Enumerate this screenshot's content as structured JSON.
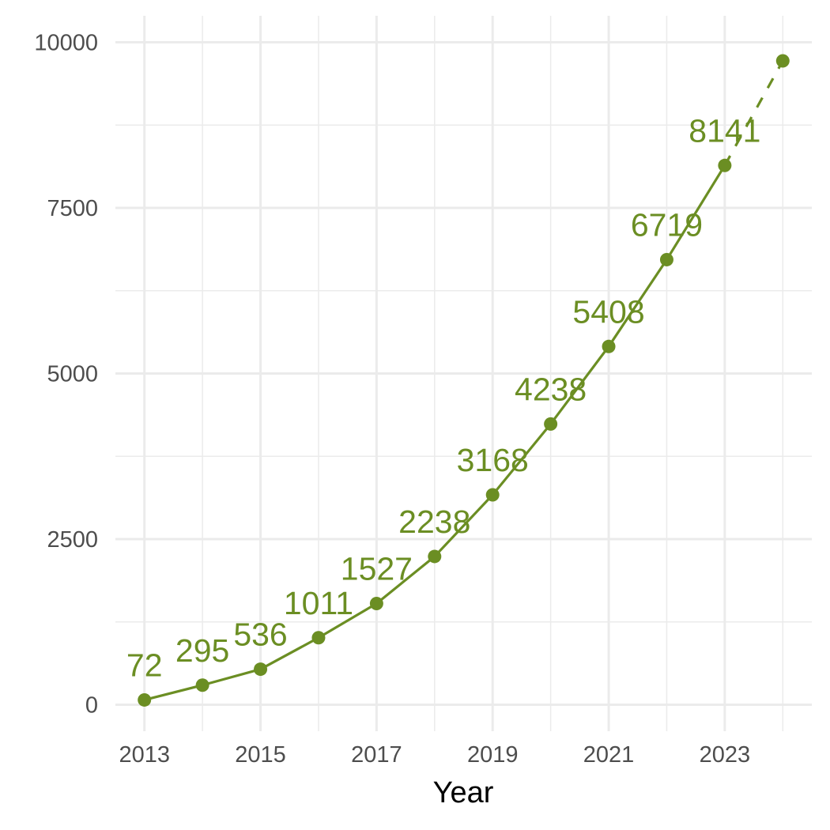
{
  "chart_data": {
    "type": "line",
    "title": "",
    "xlabel": "Year",
    "ylabel": "",
    "xlim": [
      2012.5,
      2024.5
    ],
    "ylim": [
      -400,
      10400
    ],
    "x_major_ticks": [
      2013,
      2015,
      2017,
      2019,
      2021,
      2023
    ],
    "x_tick_labels": [
      "2013",
      "2015",
      "2017",
      "2019",
      "2021",
      "2023"
    ],
    "x_minor_ticks": [
      2014,
      2016,
      2018,
      2020,
      2022,
      2024
    ],
    "y_major_ticks": [
      0,
      2500,
      5000,
      7500,
      10000
    ],
    "y_tick_labels": [
      "0",
      "2500",
      "5000",
      "7500",
      "10000"
    ],
    "y_minor_ticks": [
      1250,
      3750,
      6250,
      8750
    ],
    "grid": true,
    "legend": "none",
    "series": [
      {
        "x": [
          2013,
          2014,
          2015,
          2016,
          2017,
          2018,
          2019,
          2020,
          2021,
          2022,
          2023,
          2024
        ],
        "values": [
          72,
          295,
          536,
          1011,
          1527,
          2238,
          3168,
          4238,
          5408,
          6719,
          8141,
          9720
        ],
        "data_labels": [
          "72",
          "295",
          "536",
          "1011",
          "1527",
          "2238",
          "3168",
          "4238",
          "5408",
          "6719",
          "8141",
          ""
        ],
        "line_style": [
          "solid",
          "solid",
          "solid",
          "solid",
          "solid",
          "solid",
          "solid",
          "solid",
          "solid",
          "solid",
          "dashed"
        ],
        "color": "#6b8e23"
      }
    ]
  },
  "colors": {
    "series": "#6b8e23",
    "grid": "#ebebeb",
    "tick_text": "#4d4d4d",
    "axis_title": "#000000"
  }
}
